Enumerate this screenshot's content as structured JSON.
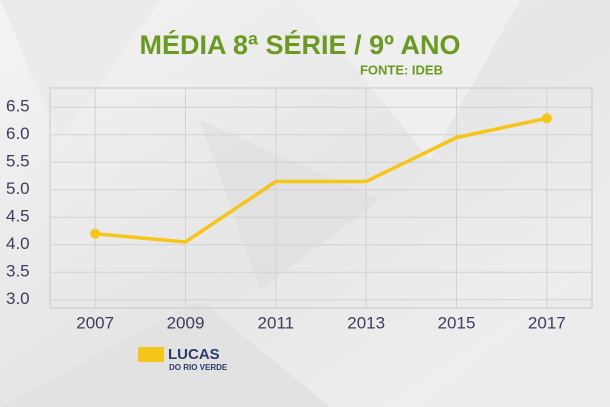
{
  "chart_data": {
    "type": "line",
    "title": "MÉDIA 8ª SÉRIE / 9º ANO",
    "subtitle": "FONTE: IDEB",
    "categories": [
      "2007",
      "2009",
      "2011",
      "2013",
      "2015",
      "2017"
    ],
    "series": [
      {
        "name": "LUCAS",
        "color": "#f5c518",
        "values": [
          4.2,
          4.05,
          5.15,
          5.15,
          5.95,
          6.3
        ]
      }
    ],
    "legend_subtitle": "DO RIO VERDE",
    "ylim": [
      2.85,
      6.85
    ],
    "yticks": [
      {
        "value": 3,
        "label": "3.0"
      },
      3.5,
      {
        "value": 4,
        "label": "4.0"
      },
      4.5,
      {
        "value": 5,
        "label": "5.0"
      },
      5.5,
      {
        "value": 6,
        "label": "6.0"
      },
      6.5
    ],
    "grid": true
  }
}
